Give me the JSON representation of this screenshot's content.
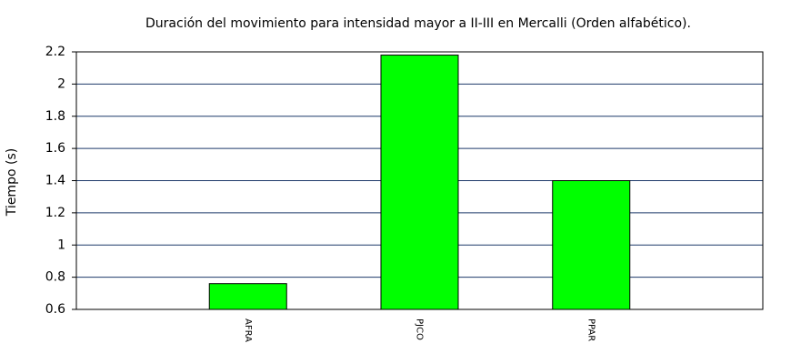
{
  "chart_data": {
    "type": "bar",
    "title": "Duración del movimiento para intensidad mayor a II-III en Mercalli (Orden alfabético).",
    "y_label": "Tiempo (s)",
    "categories": [
      "AFRA",
      "PJCO",
      "PPAR"
    ],
    "values": [
      0.76,
      2.18,
      1.4
    ],
    "color": "#00ff00",
    "ylim": [
      0.6,
      2.2
    ],
    "yticks": [
      0.6,
      0.8,
      1,
      1.2,
      1.4,
      1.6,
      1.8,
      2,
      2.2
    ],
    "grid": true
  }
}
